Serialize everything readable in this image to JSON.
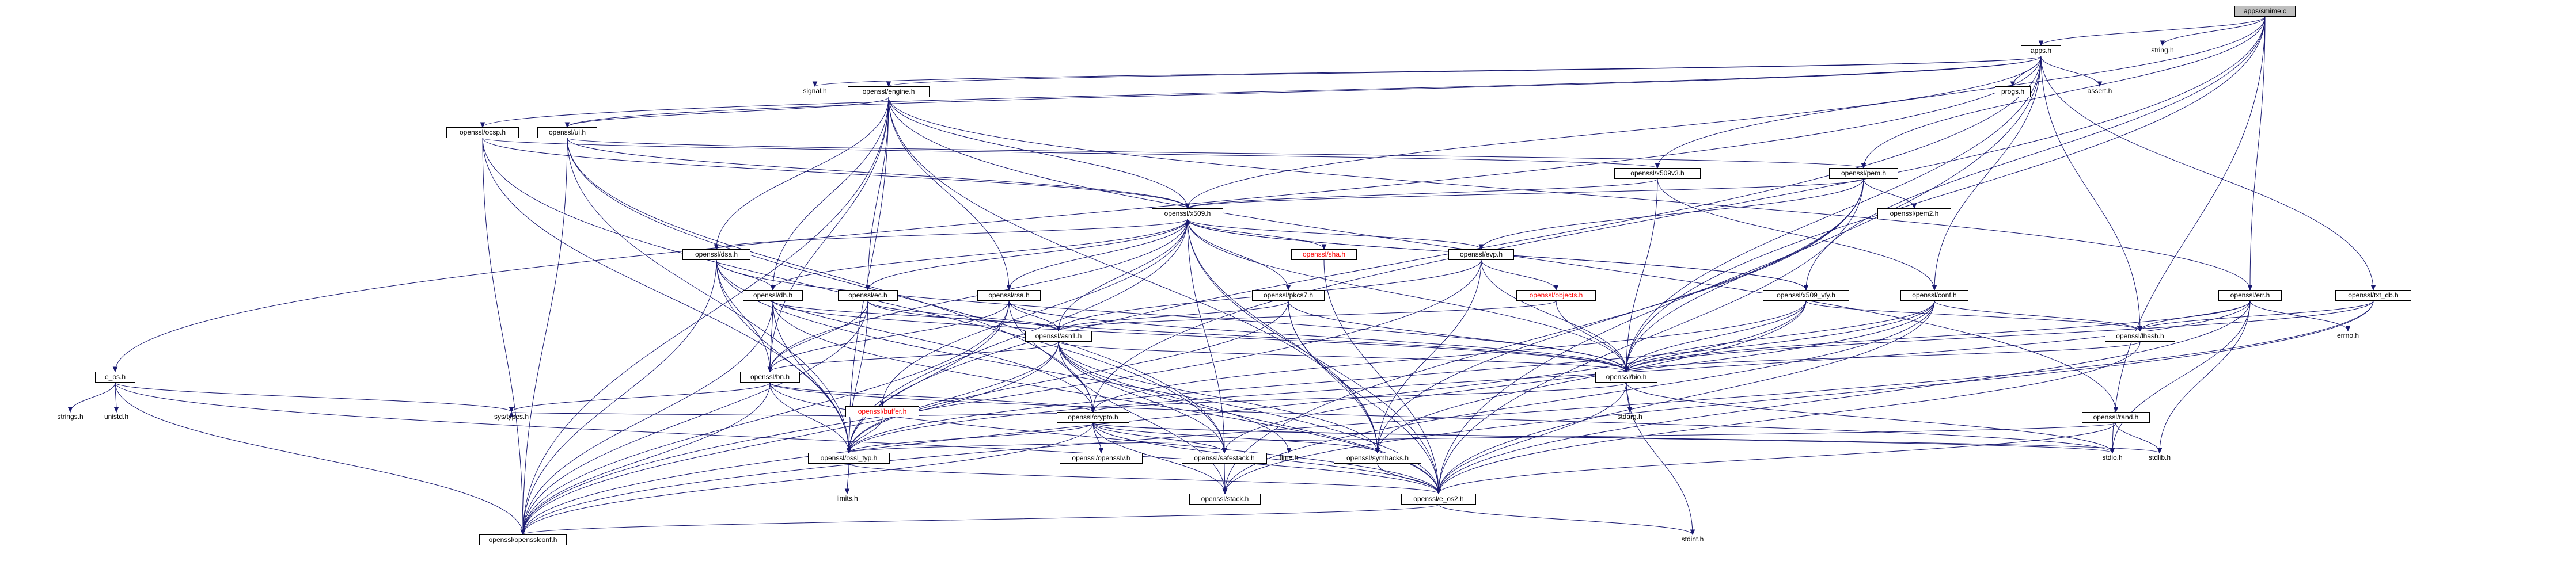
{
  "nodes": {
    "apps_smime_c": {
      "label": "apps/smime.c",
      "style": "root"
    },
    "apps_h": {
      "label": "apps.h",
      "style": "boxed"
    },
    "string_h": {
      "label": "string.h",
      "style": "plain"
    },
    "signal_h": {
      "label": "signal.h",
      "style": "plain"
    },
    "engine_h": {
      "label": "openssl/engine.h",
      "style": "boxed"
    },
    "progs_h": {
      "label": "progs.h",
      "style": "boxed"
    },
    "assert_h": {
      "label": "assert.h",
      "style": "plain"
    },
    "ocsp_h": {
      "label": "openssl/ocsp.h",
      "style": "boxed"
    },
    "ui_h": {
      "label": "openssl/ui.h",
      "style": "boxed"
    },
    "x509v3_h": {
      "label": "openssl/x509v3.h",
      "style": "boxed"
    },
    "pem_h": {
      "label": "openssl/pem.h",
      "style": "boxed"
    },
    "pem2_h": {
      "label": "openssl/pem2.h",
      "style": "boxed"
    },
    "x509_h": {
      "label": "openssl/x509.h",
      "style": "boxed"
    },
    "dsa_h": {
      "label": "openssl/dsa.h",
      "style": "boxed"
    },
    "dh_h": {
      "label": "openssl/dh.h",
      "style": "boxed"
    },
    "ec_h": {
      "label": "openssl/ec.h",
      "style": "boxed"
    },
    "rsa_h": {
      "label": "openssl/rsa.h",
      "style": "boxed"
    },
    "pkcs7_h": {
      "label": "openssl/pkcs7.h",
      "style": "boxed"
    },
    "sha_h": {
      "label": "openssl/sha.h",
      "style": "boxed red"
    },
    "evp_h": {
      "label": "openssl/evp.h",
      "style": "boxed"
    },
    "objects_h": {
      "label": "openssl/objects.h",
      "style": "boxed red"
    },
    "x509_vfy_h": {
      "label": "openssl/x509_vfy.h",
      "style": "boxed"
    },
    "conf_h": {
      "label": "openssl/conf.h",
      "style": "boxed"
    },
    "err_h": {
      "label": "openssl/err.h",
      "style": "boxed"
    },
    "txt_db_h": {
      "label": "openssl/txt_db.h",
      "style": "boxed"
    },
    "lhash_h": {
      "label": "openssl/lhash.h",
      "style": "boxed"
    },
    "errno_h": {
      "label": "errno.h",
      "style": "plain"
    },
    "e_os_h": {
      "label": "e_os.h",
      "style": "boxed"
    },
    "strings_h": {
      "label": "strings.h",
      "style": "plain"
    },
    "unistd_h": {
      "label": "unistd.h",
      "style": "plain"
    },
    "asn1_h": {
      "label": "openssl/asn1.h",
      "style": "boxed"
    },
    "bn_h": {
      "label": "openssl/bn.h",
      "style": "boxed"
    },
    "buffer_h": {
      "label": "openssl/buffer.h",
      "style": "boxed red"
    },
    "bio_h": {
      "label": "openssl/bio.h",
      "style": "boxed"
    },
    "stdarg_h": {
      "label": "stdarg.h",
      "style": "plain"
    },
    "rand_h": {
      "label": "openssl/rand.h",
      "style": "boxed"
    },
    "sys_types_h": {
      "label": "sys/types.h",
      "style": "plain"
    },
    "crypto_h": {
      "label": "openssl/crypto.h",
      "style": "boxed"
    },
    "ossl_typ_h": {
      "label": "openssl/ossl_typ.h",
      "style": "boxed"
    },
    "opensslv_h": {
      "label": "openssl/opensslv.h",
      "style": "boxed"
    },
    "safestack_h": {
      "label": "openssl/safestack.h",
      "style": "boxed"
    },
    "time_h": {
      "label": "time.h",
      "style": "plain"
    },
    "symhacks_h": {
      "label": "openssl/symhacks.h",
      "style": "boxed"
    },
    "stdio_h": {
      "label": "stdio.h",
      "style": "plain"
    },
    "stdlib_h": {
      "label": "stdlib.h",
      "style": "plain"
    },
    "limits_h": {
      "label": "limits.h",
      "style": "plain"
    },
    "stack_h": {
      "label": "openssl/stack.h",
      "style": "boxed"
    },
    "e_os2_h": {
      "label": "openssl/e_os2.h",
      "style": "boxed"
    },
    "opensslconf_h": {
      "label": "openssl/opensslconf.h",
      "style": "boxed"
    },
    "stdint_h": {
      "label": "stdint.h",
      "style": "plain"
    }
  },
  "edges": [
    [
      "apps_smime_c",
      "apps_h"
    ],
    [
      "apps_smime_c",
      "string_h"
    ],
    [
      "apps_smime_c",
      "pem_h"
    ],
    [
      "apps_smime_c",
      "x509v3_h"
    ],
    [
      "apps_smime_c",
      "err_h"
    ],
    [
      "apps_smime_c",
      "x509_vfy_h"
    ],
    [
      "apps_smime_c",
      "crypto_h"
    ],
    [
      "apps_smime_c",
      "stdio_h"
    ],
    [
      "apps_smime_c",
      "bio_h"
    ],
    [
      "apps_h",
      "signal_h"
    ],
    [
      "apps_h",
      "engine_h"
    ],
    [
      "apps_h",
      "progs_h"
    ],
    [
      "apps_h",
      "assert_h"
    ],
    [
      "apps_h",
      "ocsp_h"
    ],
    [
      "apps_h",
      "x509_h"
    ],
    [
      "apps_h",
      "conf_h"
    ],
    [
      "apps_h",
      "txt_db_h"
    ],
    [
      "apps_h",
      "lhash_h"
    ],
    [
      "apps_h",
      "e_os_h"
    ],
    [
      "apps_h",
      "ossl_typ_h"
    ],
    [
      "apps_h",
      "e_os2_h"
    ],
    [
      "apps_h",
      "bio_h"
    ],
    [
      "apps_h",
      "ui_h"
    ],
    [
      "engine_h",
      "x509_h"
    ],
    [
      "engine_h",
      "dsa_h"
    ],
    [
      "engine_h",
      "dh_h"
    ],
    [
      "engine_h",
      "ec_h"
    ],
    [
      "engine_h",
      "rsa_h"
    ],
    [
      "engine_h",
      "bn_h"
    ],
    [
      "engine_h",
      "rand_h"
    ],
    [
      "engine_h",
      "err_h"
    ],
    [
      "engine_h",
      "ui_h"
    ],
    [
      "engine_h",
      "ossl_typ_h"
    ],
    [
      "engine_h",
      "opensslconf_h"
    ],
    [
      "engine_h",
      "symhacks_h"
    ],
    [
      "ocsp_h",
      "x509_h"
    ],
    [
      "ocsp_h",
      "x509v3_h"
    ],
    [
      "ocsp_h",
      "ossl_typ_h"
    ],
    [
      "ocsp_h",
      "safestack_h"
    ],
    [
      "ocsp_h",
      "opensslconf_h"
    ],
    [
      "ui_h",
      "pem_h"
    ],
    [
      "ui_h",
      "x509_h"
    ],
    [
      "ui_h",
      "crypto_h"
    ],
    [
      "ui_h",
      "safestack_h"
    ],
    [
      "ui_h",
      "ossl_typ_h"
    ],
    [
      "ui_h",
      "opensslconf_h"
    ],
    [
      "x509v3_h",
      "x509_h"
    ],
    [
      "x509v3_h",
      "conf_h"
    ],
    [
      "x509v3_h",
      "bio_h"
    ],
    [
      "pem_h",
      "pem2_h"
    ],
    [
      "pem_h",
      "x509_h"
    ],
    [
      "pem_h",
      "evp_h"
    ],
    [
      "pem_h",
      "bio_h"
    ],
    [
      "pem_h",
      "stack_h"
    ],
    [
      "pem_h",
      "e_os2_h"
    ],
    [
      "pem_h",
      "symhacks_h"
    ],
    [
      "x509_h",
      "dsa_h"
    ],
    [
      "x509_h",
      "dh_h"
    ],
    [
      "x509_h",
      "ec_h"
    ],
    [
      "x509_h",
      "rsa_h"
    ],
    [
      "x509_h",
      "pkcs7_h"
    ],
    [
      "x509_h",
      "sha_h"
    ],
    [
      "x509_h",
      "evp_h"
    ],
    [
      "x509_h",
      "x509_vfy_h"
    ],
    [
      "x509_h",
      "asn1_h"
    ],
    [
      "x509_h",
      "bn_h"
    ],
    [
      "x509_h",
      "buffer_h"
    ],
    [
      "x509_h",
      "bio_h"
    ],
    [
      "x509_h",
      "ossl_typ_h"
    ],
    [
      "x509_h",
      "safestack_h"
    ],
    [
      "x509_h",
      "symhacks_h"
    ],
    [
      "x509_h",
      "e_os2_h"
    ],
    [
      "dsa_h",
      "dh_h"
    ],
    [
      "dsa_h",
      "bn_h"
    ],
    [
      "dsa_h",
      "bio_h"
    ],
    [
      "dsa_h",
      "crypto_h"
    ],
    [
      "dsa_h",
      "ossl_typ_h"
    ],
    [
      "dsa_h",
      "e_os2_h"
    ],
    [
      "dsa_h",
      "opensslconf_h"
    ],
    [
      "dh_h",
      "bn_h"
    ],
    [
      "dh_h",
      "asn1_h"
    ],
    [
      "dh_h",
      "bio_h"
    ],
    [
      "dh_h",
      "ossl_typ_h"
    ],
    [
      "dh_h",
      "e_os2_h"
    ],
    [
      "dh_h",
      "opensslconf_h"
    ],
    [
      "ec_h",
      "asn1_h"
    ],
    [
      "ec_h",
      "bn_h"
    ],
    [
      "ec_h",
      "bio_h"
    ],
    [
      "ec_h",
      "ossl_typ_h"
    ],
    [
      "ec_h",
      "opensslconf_h"
    ],
    [
      "rsa_h",
      "asn1_h"
    ],
    [
      "rsa_h",
      "bn_h"
    ],
    [
      "rsa_h",
      "bio_h"
    ],
    [
      "rsa_h",
      "crypto_h"
    ],
    [
      "rsa_h",
      "ossl_typ_h"
    ],
    [
      "rsa_h",
      "opensslconf_h"
    ],
    [
      "pkcs7_h",
      "asn1_h"
    ],
    [
      "pkcs7_h",
      "bio_h"
    ],
    [
      "pkcs7_h",
      "symhacks_h"
    ],
    [
      "pkcs7_h",
      "ossl_typ_h"
    ],
    [
      "pkcs7_h",
      "e_os2_h"
    ],
    [
      "sha_h",
      "e_os2_h"
    ],
    [
      "evp_h",
      "objects_h"
    ],
    [
      "evp_h",
      "bio_h"
    ],
    [
      "evp_h",
      "asn1_h"
    ],
    [
      "evp_h",
      "opensslconf_h"
    ],
    [
      "evp_h",
      "symhacks_h"
    ],
    [
      "objects_h",
      "asn1_h"
    ],
    [
      "objects_h",
      "bio_h"
    ],
    [
      "x509_vfy_h",
      "lhash_h"
    ],
    [
      "x509_vfy_h",
      "bio_h"
    ],
    [
      "x509_vfy_h",
      "crypto_h"
    ],
    [
      "x509_vfy_h",
      "symhacks_h"
    ],
    [
      "x509_vfy_h",
      "opensslconf_h"
    ],
    [
      "x509_vfy_h",
      "x509_h"
    ],
    [
      "conf_h",
      "bio_h"
    ],
    [
      "conf_h",
      "lhash_h"
    ],
    [
      "conf_h",
      "stack_h"
    ],
    [
      "conf_h",
      "safestack_h"
    ],
    [
      "conf_h",
      "ossl_typ_h"
    ],
    [
      "conf_h",
      "e_os2_h"
    ],
    [
      "err_h",
      "lhash_h"
    ],
    [
      "err_h",
      "errno_h"
    ],
    [
      "err_h",
      "bio_h"
    ],
    [
      "err_h",
      "stdio_h"
    ],
    [
      "err_h",
      "stdlib_h"
    ],
    [
      "err_h",
      "ossl_typ_h"
    ],
    [
      "err_h",
      "e_os2_h"
    ],
    [
      "txt_db_h",
      "lhash_h"
    ],
    [
      "txt_db_h",
      "bio_h"
    ],
    [
      "txt_db_h",
      "stack_h"
    ],
    [
      "txt_db_h",
      "opensslconf_h"
    ],
    [
      "lhash_h",
      "bio_h"
    ],
    [
      "lhash_h",
      "e_os2_h"
    ],
    [
      "e_os_h",
      "strings_h"
    ],
    [
      "e_os_h",
      "unistd_h"
    ],
    [
      "e_os_h",
      "sys_types_h"
    ],
    [
      "e_os_h",
      "e_os2_h"
    ],
    [
      "e_os_h",
      "opensslconf_h"
    ],
    [
      "asn1_h",
      "bn_h"
    ],
    [
      "asn1_h",
      "bio_h"
    ],
    [
      "asn1_h",
      "time_h"
    ],
    [
      "asn1_h",
      "ossl_typ_h"
    ],
    [
      "asn1_h",
      "safestack_h"
    ],
    [
      "asn1_h",
      "symhacks_h"
    ],
    [
      "asn1_h",
      "stack_h"
    ],
    [
      "asn1_h",
      "e_os2_h"
    ],
    [
      "asn1_h",
      "opensslconf_h"
    ],
    [
      "bn_h",
      "crypto_h"
    ],
    [
      "bn_h",
      "sys_types_h"
    ],
    [
      "bn_h",
      "ossl_typ_h"
    ],
    [
      "bn_h",
      "stdio_h"
    ],
    [
      "bn_h",
      "opensslconf_h"
    ],
    [
      "bn_h",
      "e_os2_h"
    ],
    [
      "buffer_h",
      "ossl_typ_h"
    ],
    [
      "buffer_h",
      "sys_types_h"
    ],
    [
      "buffer_h",
      "crypto_h"
    ],
    [
      "bio_h",
      "crypto_h"
    ],
    [
      "bio_h",
      "stdarg_h"
    ],
    [
      "bio_h",
      "stdio_h"
    ],
    [
      "bio_h",
      "stdint_h"
    ],
    [
      "bio_h",
      "e_os2_h"
    ],
    [
      "rand_h",
      "ossl_typ_h"
    ],
    [
      "rand_h",
      "stdlib_h"
    ],
    [
      "rand_h",
      "e_os2_h"
    ],
    [
      "crypto_h",
      "ossl_typ_h"
    ],
    [
      "crypto_h",
      "opensslv_h"
    ],
    [
      "crypto_h",
      "safestack_h"
    ],
    [
      "crypto_h",
      "symhacks_h"
    ],
    [
      "crypto_h",
      "stdlib_h"
    ],
    [
      "crypto_h",
      "stack_h"
    ],
    [
      "crypto_h",
      "e_os2_h"
    ],
    [
      "crypto_h",
      "opensslconf_h"
    ],
    [
      "crypto_h",
      "stdio_h"
    ],
    [
      "ossl_typ_h",
      "limits_h"
    ],
    [
      "ossl_typ_h",
      "e_os2_h"
    ],
    [
      "safestack_h",
      "stack_h"
    ],
    [
      "symhacks_h",
      "e_os2_h"
    ],
    [
      "e_os2_h",
      "opensslconf_h"
    ],
    [
      "e_os2_h",
      "stdint_h"
    ]
  ]
}
